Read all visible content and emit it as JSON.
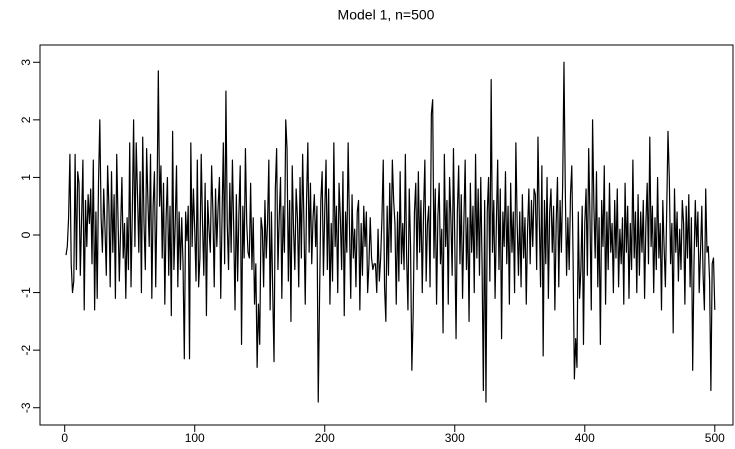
{
  "chart_data": {
    "type": "line",
    "title": "Model 1, n=500",
    "color": "#000000",
    "grid": false,
    "xlim": [
      -19,
      514
    ],
    "ylim": [
      -3.3,
      3.3
    ],
    "xticks": [
      0,
      100,
      200,
      300,
      400,
      500
    ],
    "yticks": [
      -3,
      -2,
      -1,
      0,
      1,
      2,
      3
    ],
    "x": [
      1,
      2,
      3,
      4,
      5,
      6,
      7,
      8,
      9,
      10,
      11,
      12,
      13,
      14,
      15,
      16,
      17,
      18,
      19,
      20,
      21,
      22,
      23,
      24,
      25,
      26,
      27,
      28,
      29,
      30,
      31,
      32,
      33,
      34,
      35,
      36,
      37,
      38,
      39,
      40,
      41,
      42,
      43,
      44,
      45,
      46,
      47,
      48,
      49,
      50,
      51,
      52,
      53,
      54,
      55,
      56,
      57,
      58,
      59,
      60,
      61,
      62,
      63,
      64,
      65,
      66,
      67,
      68,
      69,
      70,
      71,
      72,
      73,
      74,
      75,
      76,
      77,
      78,
      79,
      80,
      81,
      82,
      83,
      84,
      85,
      86,
      87,
      88,
      89,
      90,
      91,
      92,
      93,
      94,
      95,
      96,
      97,
      98,
      99,
      100,
      101,
      102,
      103,
      104,
      105,
      106,
      107,
      108,
      109,
      110,
      111,
      112,
      113,
      114,
      115,
      116,
      117,
      118,
      119,
      120,
      121,
      122,
      123,
      124,
      125,
      126,
      127,
      128,
      129,
      130,
      131,
      132,
      133,
      134,
      135,
      136,
      137,
      138,
      139,
      140,
      141,
      142,
      143,
      144,
      145,
      146,
      147,
      148,
      149,
      150,
      151,
      152,
      153,
      154,
      155,
      156,
      157,
      158,
      159,
      160,
      161,
      162,
      163,
      164,
      165,
      166,
      167,
      168,
      169,
      170,
      171,
      172,
      173,
      174,
      175,
      176,
      177,
      178,
      179,
      180,
      181,
      182,
      183,
      184,
      185,
      186,
      187,
      188,
      189,
      190,
      191,
      192,
      193,
      194,
      195,
      196,
      197,
      198,
      199,
      200,
      201,
      202,
      203,
      204,
      205,
      206,
      207,
      208,
      209,
      210,
      211,
      212,
      213,
      214,
      215,
      216,
      217,
      218,
      219,
      220,
      221,
      222,
      223,
      224,
      225,
      226,
      227,
      228,
      229,
      230,
      231,
      232,
      233,
      234,
      235,
      236,
      237,
      238,
      239,
      240,
      241,
      242,
      243,
      244,
      245,
      246,
      247,
      248,
      249,
      250,
      251,
      252,
      253,
      254,
      255,
      256,
      257,
      258,
      259,
      260,
      261,
      262,
      263,
      264,
      265,
      266,
      267,
      268,
      269,
      270,
      271,
      272,
      273,
      274,
      275,
      276,
      277,
      278,
      279,
      280,
      281,
      282,
      283,
      284,
      285,
      286,
      287,
      288,
      289,
      290,
      291,
      292,
      293,
      294,
      295,
      296,
      297,
      298,
      299,
      300,
      301,
      302,
      303,
      304,
      305,
      306,
      307,
      308,
      309,
      310,
      311,
      312,
      313,
      314,
      315,
      316,
      317,
      318,
      319,
      320,
      321,
      322,
      323,
      324,
      325,
      326,
      327,
      328,
      329,
      330,
      331,
      332,
      333,
      334,
      335,
      336,
      337,
      338,
      339,
      340,
      341,
      342,
      343,
      344,
      345,
      346,
      347,
      348,
      349,
      350,
      351,
      352,
      353,
      354,
      355,
      356,
      357,
      358,
      359,
      360,
      361,
      362,
      363,
      364,
      365,
      366,
      367,
      368,
      369,
      370,
      371,
      372,
      373,
      374,
      375,
      376,
      377,
      378,
      379,
      380,
      381,
      382,
      383,
      384,
      385,
      386,
      387,
      388,
      389,
      390,
      391,
      392,
      393,
      394,
      395,
      396,
      397,
      398,
      399,
      400,
      401,
      402,
      403,
      404,
      405,
      406,
      407,
      408,
      409,
      410,
      411,
      412,
      413,
      414,
      415,
      416,
      417,
      418,
      419,
      420,
      421,
      422,
      423,
      424,
      425,
      426,
      427,
      428,
      429,
      430,
      431,
      432,
      433,
      434,
      435,
      436,
      437,
      438,
      439,
      440,
      441,
      442,
      443,
      444,
      445,
      446,
      447,
      448,
      449,
      450,
      451,
      452,
      453,
      454,
      455,
      456,
      457,
      458,
      459,
      460,
      461,
      462,
      463,
      464,
      465,
      466,
      467,
      468,
      469,
      470,
      471,
      472,
      473,
      474,
      475,
      476,
      477,
      478,
      479,
      480,
      481,
      482,
      483,
      484,
      485,
      486,
      487,
      488,
      489,
      490,
      491,
      492,
      493,
      494,
      495,
      496,
      497,
      498,
      499,
      500
    ],
    "values": [
      -0.35,
      -0.2,
      0.3,
      1.4,
      -0.5,
      -1.0,
      -0.8,
      1.4,
      -0.6,
      1.1,
      0.9,
      -0.7,
      0.3,
      1.3,
      -1.3,
      0.6,
      -0.2,
      0.7,
      0.2,
      0.8,
      -0.5,
      1.3,
      -1.3,
      0.4,
      -1.1,
      0.9,
      2.0,
      0.3,
      -0.3,
      0.8,
      0.1,
      -0.7,
      1.2,
      0.5,
      -0.9,
      1.1,
      -0.3,
      0.7,
      -1.1,
      1.4,
      0.3,
      -0.8,
      0.1,
      1.0,
      -0.4,
      0.2,
      -1.1,
      0.3,
      -0.6,
      1.6,
      -0.9,
      0.4,
      2.0,
      -0.2,
      1.6,
      0.7,
      -0.3,
      1.1,
      -1.0,
      1.7,
      0.2,
      -0.6,
      1.5,
      0.6,
      -0.2,
      1.4,
      -1.1,
      0.5,
      1.1,
      -0.9,
      0.6,
      2.85,
      0.5,
      1.2,
      -0.4,
      0.9,
      -1.2,
      0.3,
      1.0,
      -0.7,
      0.5,
      -1.4,
      1.8,
      -0.6,
      0.2,
      1.2,
      -0.9,
      0.4,
      -0.6,
      0.3,
      -0.5,
      -2.15,
      0.4,
      -0.1,
      0.5,
      -2.15,
      1.6,
      -0.2,
      0.8,
      0.1,
      -0.8,
      1.3,
      -0.9,
      -0.4,
      1.4,
      0.2,
      -0.7,
      0.9,
      -1.4,
      0.6,
      0.1,
      -0.3,
      1.2,
      0.4,
      -0.9,
      0.8,
      -0.2,
      0.5,
      1.0,
      -1.1,
      0.3,
      1.6,
      -0.5,
      2.5,
      0.2,
      -0.6,
      0.9,
      -0.3,
      1.3,
      0.1,
      -1.3,
      0.7,
      -0.8,
      0.4,
      1.2,
      -1.9,
      0.5,
      -0.4,
      1.5,
      0.2,
      -0.3,
      -0.4,
      0.9,
      -0.6,
      0.3,
      -1.2,
      -0.5,
      -2.3,
      -1.2,
      -1.9,
      0.3,
      0.1,
      -0.9,
      0.6,
      -0.4,
      0.2,
      1.3,
      -1.3,
      0.4,
      -1.0,
      -2.2,
      0.8,
      1.5,
      -0.6,
      0.3,
      1.0,
      -1.1,
      0.5,
      -0.3,
      2.0,
      1.5,
      -0.8,
      0.6,
      -1.5,
      1.2,
      0.1,
      -0.6,
      0.8,
      0.3,
      -0.9,
      1.0,
      -0.4,
      1.4,
      0.2,
      -1.2,
      0.6,
      1.6,
      -0.3,
      0.9,
      -0.5,
      0.3,
      0.7,
      -0.2,
      0.5,
      -2.9,
      -1.1,
      0.6,
      1.1,
      -0.7,
      0.4,
      1.3,
      -0.6,
      0.8,
      -1.2,
      0.2,
      -0.8,
      1.6,
      -0.2,
      0.5,
      -1.0,
      0.9,
      0.3,
      -0.6,
      1.1,
      -1.4,
      0.4,
      -0.3,
      1.6,
      0.2,
      -1.1,
      0.7,
      -0.4,
      0.1,
      -0.9,
      0.4,
      0.6,
      -1.3,
      0.2,
      -0.7,
      0.5,
      -0.2,
      0.4,
      -1.0,
      -0.5,
      0.3,
      -0.4,
      -0.6,
      -0.5,
      -0.5,
      -1.0,
      0.1,
      -0.8,
      -0.4,
      0.3,
      1.3,
      -0.9,
      -1.5,
      0.5,
      -0.7,
      0.9,
      -0.3,
      1.3,
      0.6,
      0.2,
      -1.2,
      0.4,
      -0.8,
      1.1,
      -0.5,
      0.2,
      -0.6,
      1.4,
      -0.4,
      -1.3,
      0.8,
      -0.2,
      -2.35,
      -1.4,
      0.4,
      0.9,
      -0.6,
      1.1,
      -0.3,
      0.6,
      -1.0,
      0.4,
      1.3,
      -0.8,
      0.2,
      0.5,
      -0.9,
      2.1,
      2.35,
      -0.4,
      0.8,
      -1.2,
      0.3,
      0.9,
      -0.5,
      0.1,
      -1.7,
      1.4,
      -0.2,
      0.6,
      -1.2,
      1.0,
      0.3,
      -0.7,
      1.5,
      -0.1,
      -1.8,
      0.4,
      1.2,
      -0.5,
      0.7,
      -1.1,
      0.2,
      1.3,
      -0.6,
      0.3,
      -1.5,
      0.9,
      -0.3,
      0.5,
      -1.0,
      1.4,
      -0.4,
      0.8,
      -0.7,
      1.0,
      -0.5,
      -2.7,
      0.6,
      -2.9,
      0.4,
      1.0,
      -0.8,
      2.7,
      -0.3,
      0.6,
      -1.1,
      0.2,
      1.3,
      -0.6,
      0.8,
      -1.8,
      0.4,
      -0.2,
      1.1,
      -0.5,
      0.5,
      -1.2,
      0.9,
      -0.3,
      0.4,
      -1.0,
      1.6,
      0.2,
      -0.7,
      0.4,
      -0.9,
      0.7,
      -0.4,
      0.3,
      -1.2,
      0.1,
      0.8,
      -0.5,
      0.6,
      -0.2,
      0.8,
      0.7,
      -0.6,
      1.7,
      0.3,
      -0.9,
      1.2,
      -2.1,
      0.6,
      -0.5,
      1.0,
      -1.1,
      0.4,
      0.8,
      -0.3,
      0.5,
      -1.3,
      0.2,
      1.0,
      -0.9,
      0.6,
      -0.3,
      0.9,
      3.0,
      0.8,
      -0.7,
      0.3,
      -0.6,
      0.7,
      1.2,
      -0.4,
      -2.5,
      -1.8,
      -2.3,
      0.4,
      -1.1,
      -0.6,
      0.5,
      -1.9,
      0.2,
      0.8,
      -0.7,
      1.5,
      0.3,
      -1.3,
      2.0,
      0.5,
      -0.4,
      1.1,
      -0.9,
      0.3,
      -1.9,
      0.6,
      -0.2,
      1.2,
      -1.2,
      0.4,
      -0.6,
      0.9,
      -0.3,
      0.2,
      -1.0,
      0.6,
      -0.4,
      0.8,
      -0.9,
      0.1,
      -0.5,
      0.3,
      -1.2,
      0.9,
      -0.3,
      0.5,
      -1.1,
      0.2,
      -0.6,
      1.3,
      -0.4,
      0.4,
      -1.0,
      0.7,
      -0.7,
      0.4,
      -0.3,
      0.6,
      -1.1,
      0.2,
      0.9,
      -0.5,
      1.7,
      -0.2,
      0.5,
      -1.0,
      0.3,
      -0.6,
      1.0,
      -0.4,
      0.2,
      -1.3,
      0.6,
      -0.2,
      -0.9,
      0.4,
      1.8,
      1.0,
      -0.5,
      0.2,
      -1.7,
      0.8,
      -0.3,
      0.4,
      -0.8,
      0.1,
      -0.6,
      0.6,
      0.2,
      -1.2,
      0.5,
      -0.4,
      0.7,
      -0.9,
      0.3,
      -2.35,
      -0.5,
      0.6,
      -0.2,
      0.4,
      -1.0,
      -0.3,
      0.5,
      -0.7,
      -1.3,
      0.8,
      -0.3,
      -0.2,
      -0.8,
      -2.7,
      -0.5,
      -0.4,
      -1.3
    ]
  }
}
